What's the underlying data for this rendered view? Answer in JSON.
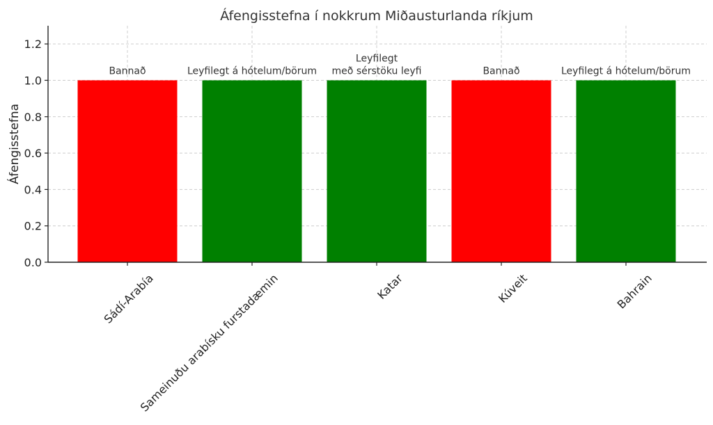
{
  "chart_data": {
    "type": "bar",
    "title": "Áfengisstefna í nokkrum Miðausturlanda ríkjum",
    "xlabel": "",
    "ylabel": "Áfengisstefna",
    "ylim": [
      0,
      1.3
    ],
    "yticks": [
      "0.0",
      "0.2",
      "0.4",
      "0.6",
      "0.8",
      "1.0",
      "1.2"
    ],
    "ytick_values": [
      0,
      0.2,
      0.4,
      0.6,
      0.8,
      1.0,
      1.2
    ],
    "grid": true,
    "categories": [
      "Sádí-Arabía",
      "Sameinuðu arabísku furstadæmin",
      "Katar",
      "Kúveit",
      "Bahrain"
    ],
    "values": [
      1,
      1,
      1,
      1,
      1
    ],
    "bar_colors": [
      "#ff0000",
      "#008000",
      "#008000",
      "#ff0000",
      "#008000"
    ],
    "bar_labels": [
      [
        "Bannað"
      ],
      [
        "Leyfilegt á hótelum/börum"
      ],
      [
        "Leyfilegt",
        "með sérstöku leyfi"
      ],
      [
        "Bannað"
      ],
      [
        "Leyfilegt á hótelum/börum"
      ]
    ]
  }
}
